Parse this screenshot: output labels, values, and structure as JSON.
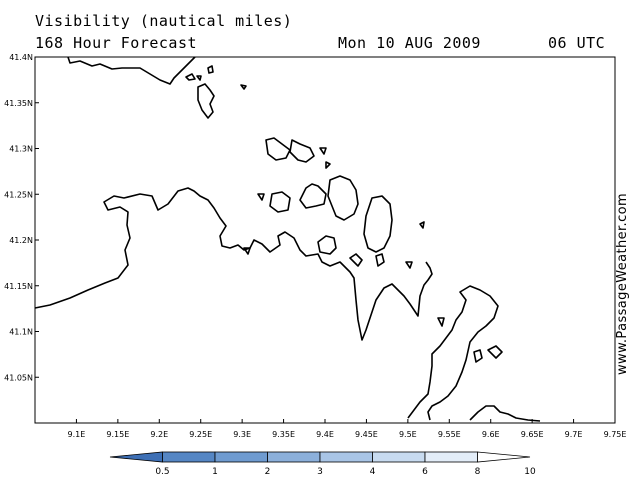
{
  "header": {
    "title": "Visibility (nautical miles)",
    "subtitle": "168 Hour Forecast",
    "date": "Mon 10 AUG 2009",
    "time": "06 UTC"
  },
  "map": {
    "lon_range": [
      9.05,
      9.75
    ],
    "lat_range": [
      41.0,
      41.4
    ],
    "lat_labels": [
      "41.4N",
      "41.35N",
      "41.3N",
      "41.25N",
      "41.2N",
      "41.15N",
      "41.1N",
      "41.05N"
    ],
    "lat_values": [
      41.4,
      41.35,
      41.3,
      41.25,
      41.2,
      41.15,
      41.1,
      41.05
    ],
    "lon_labels": [
      "9.1E",
      "9.15E",
      "9.2E",
      "9.25E",
      "9.3E",
      "9.35E",
      "9.4E",
      "9.45E",
      "9.5E",
      "9.55E",
      "9.6E",
      "9.65E",
      "9.7E",
      "9.75E"
    ],
    "lon_values": [
      9.1,
      9.15,
      9.2,
      9.25,
      9.3,
      9.35,
      9.4,
      9.45,
      9.5,
      9.55,
      9.6,
      9.65,
      9.7,
      9.75
    ],
    "coastline_color": "#000000"
  },
  "watermark": "www.PassageWeather.com",
  "colorbar": {
    "labels": [
      "0.5",
      "1",
      "2",
      "3",
      "4",
      "6",
      "8",
      "10"
    ],
    "colors": [
      "#3d6fb5",
      "#5586c4",
      "#6f9bd0",
      "#8cb0db",
      "#a9c5e6",
      "#c8dbf0",
      "#e3edf8",
      "#ffffff"
    ]
  }
}
